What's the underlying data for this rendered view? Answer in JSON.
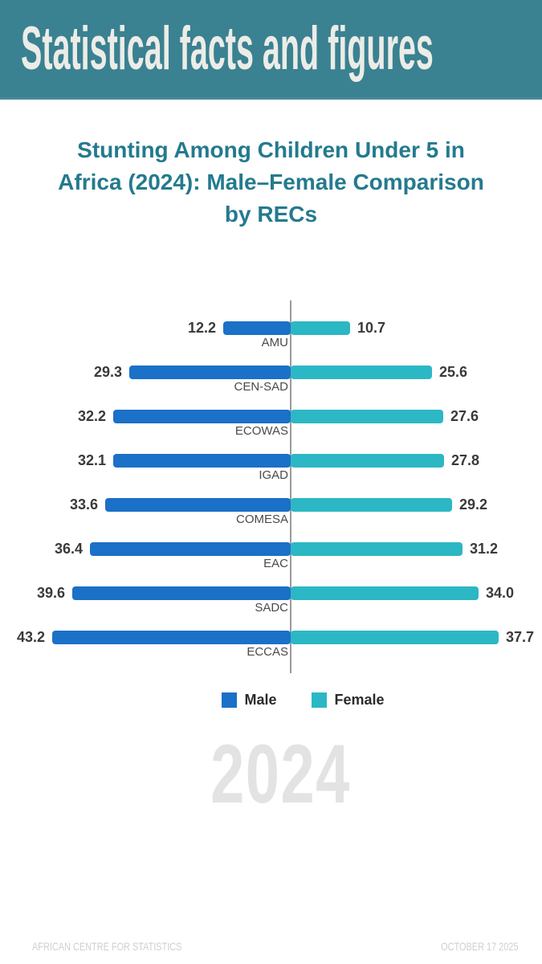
{
  "header": {
    "title": "Statistical facts and figures",
    "bg_color": "#3A8191",
    "text_color": "#ECECE7"
  },
  "title": {
    "lines": [
      "Stunting Among Children Under 5 in",
      "Africa (2024): Male–Female Comparison",
      "by RECs"
    ],
    "color": "#247A8E"
  },
  "chart_data": {
    "type": "bar",
    "orientation": "diverging-horizontal",
    "title": "Stunting Among Children Under 5 in Africa (2024): Male–Female Comparison by RECs",
    "categories": [
      "AMU",
      "CEN-SAD",
      "ECOWAS",
      "IGAD",
      "COMESA",
      "EAC",
      "SADC",
      "ECCAS"
    ],
    "series": [
      {
        "name": "Male",
        "color": "#1B70C7",
        "values": [
          12.2,
          29.3,
          32.2,
          32.1,
          33.6,
          36.4,
          39.6,
          43.2
        ]
      },
      {
        "name": "Female",
        "color": "#2CB7C5",
        "values": [
          10.7,
          25.6,
          27.6,
          27.8,
          29.2,
          31.2,
          34.0,
          37.7
        ]
      }
    ],
    "value_decimals": 1,
    "xlabel": "",
    "ylabel": "",
    "grid": false,
    "center_axis_line": true,
    "legend_position": "bottom-center"
  },
  "legend": {
    "items": [
      {
        "label": "Male",
        "color": "#1B70C7"
      },
      {
        "label": "Female",
        "color": "#2CB7C5"
      }
    ]
  },
  "watermark": {
    "text": "2024",
    "color": "#E3E3E3"
  },
  "footer": {
    "left": "AFRICAN CENTRE FOR STATISTICS",
    "right": "OCTOBER 17 2025",
    "text_color": "#cfcfcf"
  }
}
